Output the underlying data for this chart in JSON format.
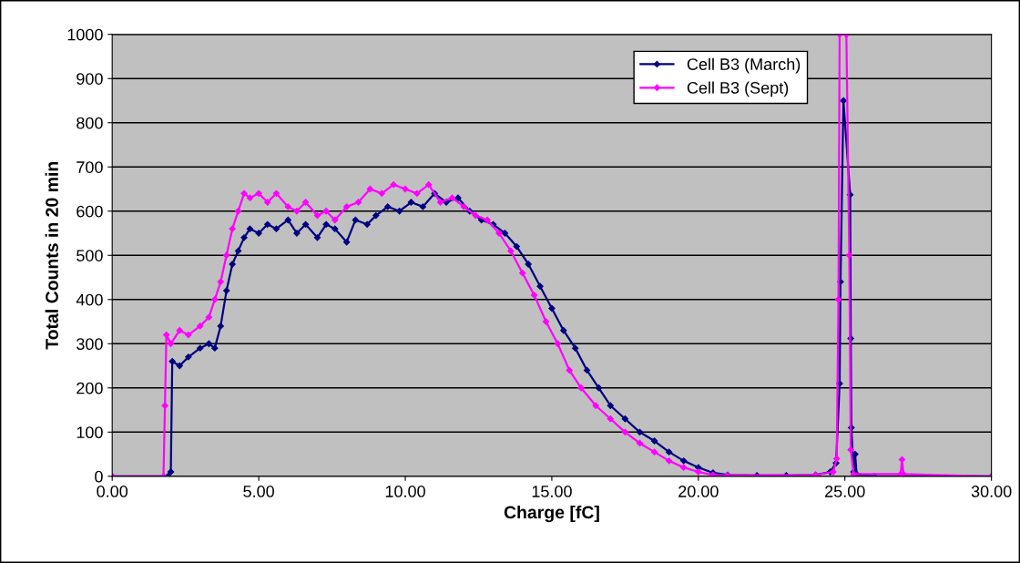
{
  "chart_data": {
    "type": "line",
    "xlabel": "Charge [fC]",
    "ylabel": "Total Counts in 20 min",
    "xlim": [
      0,
      30
    ],
    "xticks": [
      {
        "value": 0,
        "label": "0.00"
      },
      {
        "value": 5,
        "label": "5.00"
      },
      {
        "value": 10,
        "label": "10.00"
      },
      {
        "value": 15,
        "label": "15.00"
      },
      {
        "value": 20,
        "label": "20.00"
      },
      {
        "value": 25,
        "label": "25.00"
      },
      {
        "value": 30,
        "label": "30.00"
      }
    ],
    "ylim": [
      0,
      1000
    ],
    "yticks": [
      0,
      100,
      200,
      300,
      400,
      500,
      600,
      700,
      800,
      900,
      1000
    ],
    "grid": "y",
    "legend": "top right",
    "marker": "diamond",
    "line_style": "solid",
    "series": [
      {
        "name": "Cell B3 (March)",
        "color": "#000080",
        "x": [
          0,
          1.9,
          2.0,
          2.05,
          2.3,
          2.6,
          3.0,
          3.3,
          3.5,
          3.7,
          3.9,
          4.1,
          4.3,
          4.5,
          4.7,
          5.0,
          5.3,
          5.6,
          6.0,
          6.3,
          6.6,
          7.0,
          7.3,
          7.6,
          8.0,
          8.3,
          8.7,
          9.0,
          9.4,
          9.8,
          10.2,
          10.6,
          11.0,
          11.4,
          11.8,
          12.2,
          12.6,
          13.0,
          13.4,
          13.8,
          14.2,
          14.6,
          15.0,
          15.4,
          15.8,
          16.2,
          16.6,
          17.0,
          17.5,
          18.0,
          18.5,
          19.0,
          19.5,
          20.0,
          20.5,
          21.0,
          22.0,
          23.0,
          24.0,
          24.5,
          24.7,
          24.82,
          24.85,
          24.95,
          25.18,
          25.2,
          25.22,
          25.3,
          25.35,
          25.4,
          26.0,
          30.0
        ],
        "values": [
          0,
          0,
          10,
          260,
          250,
          270,
          290,
          300,
          290,
          340,
          420,
          480,
          510,
          540,
          560,
          550,
          570,
          560,
          580,
          550,
          570,
          540,
          570,
          560,
          530,
          580,
          570,
          590,
          610,
          600,
          620,
          610,
          640,
          620,
          630,
          600,
          580,
          570,
          550,
          520,
          480,
          430,
          380,
          330,
          290,
          240,
          200,
          160,
          130,
          100,
          80,
          55,
          35,
          20,
          8,
          3,
          2,
          2,
          3,
          10,
          30,
          210,
          440,
          850,
          637,
          312,
          110,
          10,
          50,
          5,
          0,
          0
        ]
      },
      {
        "name": "Cell B3 (Sept)",
        "color": "#ff00ff",
        "x": [
          0,
          1.75,
          1.8,
          1.85,
          2.0,
          2.3,
          2.6,
          3.0,
          3.3,
          3.5,
          3.7,
          3.9,
          4.1,
          4.3,
          4.5,
          4.7,
          5.0,
          5.3,
          5.6,
          6.0,
          6.3,
          6.6,
          7.0,
          7.3,
          7.6,
          8.0,
          8.4,
          8.8,
          9.2,
          9.6,
          10.0,
          10.4,
          10.8,
          11.2,
          11.6,
          12.0,
          12.4,
          12.8,
          13.2,
          13.6,
          14.0,
          14.4,
          14.8,
          15.2,
          15.6,
          16.0,
          16.5,
          17.0,
          17.5,
          18.0,
          18.5,
          19.0,
          19.5,
          20.0,
          20.5,
          21.0,
          24.0,
          24.6,
          24.72,
          24.78,
          24.82,
          25.05,
          25.15,
          25.2,
          25.3,
          26.9,
          26.95,
          27.0,
          30.0
        ],
        "values": [
          0,
          0,
          160,
          320,
          300,
          330,
          320,
          340,
          360,
          400,
          440,
          500,
          560,
          600,
          640,
          630,
          640,
          620,
          640,
          610,
          600,
          620,
          590,
          600,
          580,
          610,
          620,
          650,
          640,
          660,
          650,
          640,
          660,
          620,
          630,
          610,
          590,
          580,
          550,
          510,
          460,
          410,
          350,
          300,
          240,
          200,
          160,
          130,
          100,
          75,
          55,
          35,
          20,
          10,
          3,
          2,
          3,
          10,
          40,
          400,
          1000,
          1000,
          500,
          60,
          5,
          5,
          38,
          5,
          0
        ]
      }
    ]
  }
}
